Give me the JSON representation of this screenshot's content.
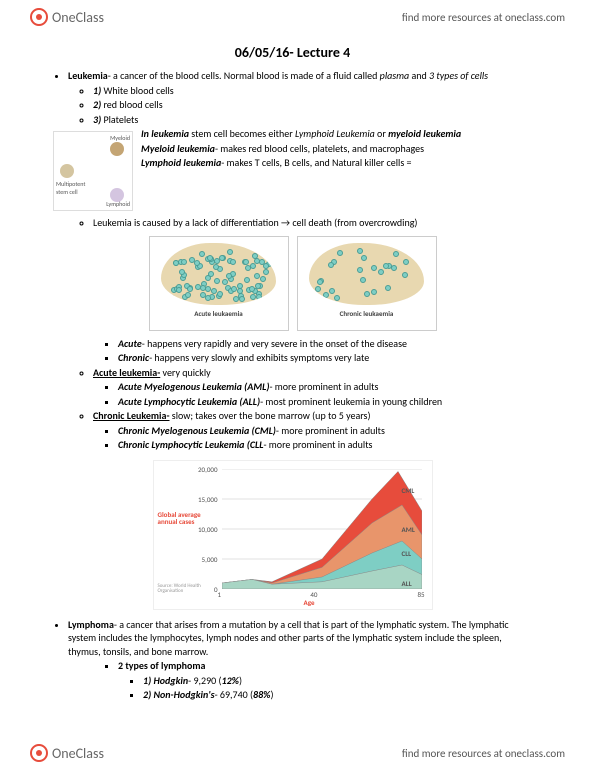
{
  "brand": {
    "name": "OneClass",
    "tagline": "find more resources at oneclass.com"
  },
  "title": "06/05/16- Lecture 4",
  "leukemia": {
    "heading": "Leukemia",
    "def": "- a cancer of the blood cells. Normal blood is made of a fluid called ",
    "plasma": "plasma",
    "def2": " and ",
    "three": "3 types of cells",
    "cells": {
      "c1_n": "1)",
      "c1": " White blood cells",
      "c2_n": "2)",
      "c2": " red blood cells",
      "c3_n": "3)",
      "c3": " Platelets"
    },
    "stem": {
      "intro_pre": "In leukemia",
      "intro": " stem cell becomes either ",
      "ll": "Lymphoid Leukemia",
      "or": " or ",
      "ml": "myeloid leukemia",
      "myeloid_h": "Myeloid leukemia",
      "myeloid": "- makes red blood cells, platelets, and macrophages",
      "lymphoid_h": "Lymphoid leukemia",
      "lymphoid": "- makes T cells, B cells, and Natural killer cells ="
    },
    "cause": "Leukemia is caused by a lack of differentiation → cell death (from overcrowding)",
    "diagram": {
      "label_top": "Myeloid",
      "label_left": "Multipotent stem cell",
      "label_bottom": "Lymphoid"
    },
    "bone_captions": {
      "acute": "Acute leukaemia",
      "chronic": "Chronic leukaemia"
    },
    "timing": {
      "acute_h": "Acute",
      "acute": "- happens very rapidly and very severe in the onset of the disease",
      "chronic_h": "Chronic",
      "chronic": "- happens very slowly and exhibits symptoms very late"
    },
    "acute_section": {
      "heading": "Acute leukemia-",
      "desc": " very quickly",
      "aml_h": "Acute Myelogenous Leukemia (AML)",
      "aml": "- more prominent in adults",
      "all_h": "Acute Lymphocytic Leukemia (ALL)",
      "all": "- most prominent leukemia in young children"
    },
    "chronic_section": {
      "heading": "Chronic Leukemia-",
      "desc": " slow; takes over the bone marrow (up to 5 years)",
      "cml_h": "Chronic Myelogenous Leukemia (CML)",
      "cml": "- more prominent in adults",
      "cll_h": "Chronic Lymphocytic Leukemia (CLL",
      "cll": "- more prominent in adults"
    }
  },
  "chart": {
    "type": "stacked-area",
    "ylabel": "Global average annual cases",
    "xlabel": "Age",
    "source": "Source: World Health Organisation",
    "ylim": [
      0,
      20000
    ],
    "yticks": [
      0,
      5000,
      10000,
      15000,
      20000
    ],
    "ytick_labels": [
      "0",
      "5,000",
      "10,000",
      "15,000",
      "20,000"
    ],
    "xlim": [
      1,
      85
    ],
    "xticks": [
      1,
      40,
      85
    ],
    "series": [
      {
        "name": "ALL",
        "color": "#a8d5c4",
        "label_x": 88,
        "label_y": 5
      },
      {
        "name": "CLL",
        "color": "#7ecec4",
        "label_x": 88,
        "label_y": 30
      },
      {
        "name": "AML",
        "color": "#e8956b",
        "label_x": 88,
        "label_y": 50
      },
      {
        "name": "CML",
        "color": "#e74c3c",
        "label_x": 88,
        "label_y": 82
      }
    ],
    "areas": {
      "ALL": [
        [
          0,
          5
        ],
        [
          15,
          8
        ],
        [
          25,
          4
        ],
        [
          50,
          6
        ],
        [
          75,
          15
        ],
        [
          90,
          20
        ],
        [
          100,
          12
        ]
      ],
      "CLL": [
        [
          0,
          5
        ],
        [
          15,
          8
        ],
        [
          25,
          4
        ],
        [
          50,
          10
        ],
        [
          75,
          30
        ],
        [
          90,
          40
        ],
        [
          100,
          25
        ]
      ],
      "AML": [
        [
          0,
          5
        ],
        [
          15,
          8
        ],
        [
          25,
          5
        ],
        [
          50,
          18
        ],
        [
          75,
          55
        ],
        [
          90,
          70
        ],
        [
          100,
          45
        ]
      ],
      "CML": [
        [
          0,
          5
        ],
        [
          15,
          8
        ],
        [
          25,
          6
        ],
        [
          50,
          25
        ],
        [
          75,
          75
        ],
        [
          88,
          98
        ],
        [
          100,
          65
        ]
      ]
    },
    "background_color": "#ffffff",
    "grid_color": "#e0e0e0"
  },
  "lymphoma": {
    "heading": "Lymphoma",
    "def": "- a cancer that arises from a mutation by a cell that is part of the lymphatic system. The lymphatic system includes the lymphocytes, lymph nodes and other parts of the lymphatic system include the spleen, thymus, tonsils, and bone marrow.",
    "types_h": "2 types of lymphoma",
    "hodgkin_n": "1) Hodgkin",
    "hodgkin": "- 9,290 (",
    "hodgkin_pct": "12%",
    "hodgkin_close": ")",
    "nonhodgkin_n": "2) Non-Hodgkin's",
    "nonhodgkin": "- 69,740 (",
    "nonhodgkin_pct": "88%",
    "nonhodgkin_close": ")"
  }
}
